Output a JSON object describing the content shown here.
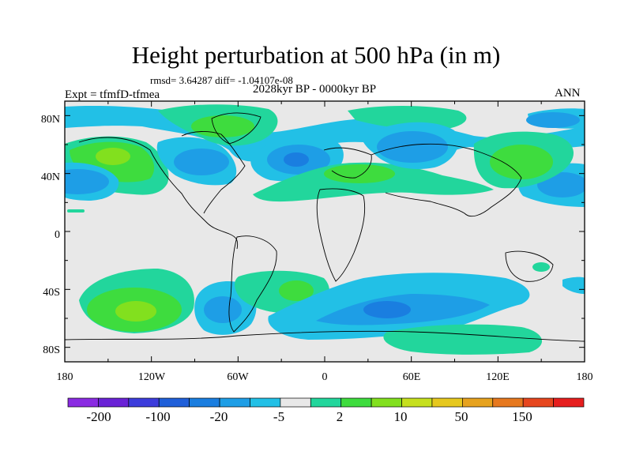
{
  "title": "Height perturbation at 500 hPa (in m)",
  "subtitle": "rmsd= 3.64287 diff= -1.04107e-08",
  "period": "2028kyr BP - 0000kyr BP",
  "experiment": "Expt = tfmfD-tfmea",
  "season": "ANN",
  "axes": {
    "lat_labels": [
      "80N",
      "40N",
      "0",
      "40S",
      "80S"
    ],
    "lon_labels": [
      "180",
      "120W",
      "60W",
      "0",
      "60E",
      "120E",
      "180"
    ],
    "lat_range": [
      -90,
      90
    ],
    "lon_range": [
      -180,
      180
    ]
  },
  "colorbar": {
    "colors": [
      "#8a2be2",
      "#6a22d6",
      "#3c3cdc",
      "#1f5fd9",
      "#1a7ee0",
      "#1e9ee6",
      "#22c0e6",
      "#e8e8e8",
      "#22d69c",
      "#3edc3e",
      "#82e01e",
      "#c6e01e",
      "#e6c81e",
      "#e6a21e",
      "#e6781e",
      "#e6461e",
      "#e61e1e"
    ],
    "labels": [
      "-200",
      "-100",
      "-20",
      "-5",
      "2",
      "10",
      "50",
      "150"
    ]
  },
  "chart_data": {
    "type": "heatmap",
    "title": "Height perturbation at 500 hPa (in m)",
    "projection": "cylindrical equidistant",
    "xlabel": "",
    "ylabel": "",
    "xlim": [
      -180,
      180
    ],
    "ylim": [
      -90,
      90
    ],
    "contour_levels": [
      -200,
      -150,
      -100,
      -50,
      -20,
      -10,
      -5,
      -2,
      2,
      5,
      10,
      20,
      50,
      100,
      150,
      200
    ],
    "anomaly_regions": [
      {
        "sign": "positive",
        "lon": -145,
        "lat": 53,
        "peak_level": 20
      },
      {
        "sign": "positive",
        "lon": -130,
        "lat": -55,
        "peak_level": 20
      },
      {
        "sign": "positive",
        "lon": 128,
        "lat": 50,
        "peak_level": 10
      },
      {
        "sign": "positive",
        "lon": -65,
        "lat": 76,
        "peak_level": 10
      },
      {
        "sign": "positive",
        "lon": 40,
        "lat": 35,
        "peak_level": 10
      },
      {
        "sign": "positive",
        "lon": -20,
        "lat": -38,
        "peak_level": 10
      },
      {
        "sign": "positive",
        "lon": 55,
        "lat": -78,
        "peak_level": 5
      },
      {
        "sign": "negative",
        "lon": -170,
        "lat": 35,
        "peak_level": -5
      },
      {
        "sign": "negative",
        "lon": 170,
        "lat": 33,
        "peak_level": -5
      },
      {
        "sign": "negative",
        "lon": -100,
        "lat": 50,
        "peak_level": -5
      },
      {
        "sign": "negative",
        "lon": -25,
        "lat": 52,
        "peak_level": -5
      },
      {
        "sign": "negative",
        "lon": 60,
        "lat": 60,
        "peak_level": -5
      },
      {
        "sign": "negative",
        "lon": 45,
        "lat": -52,
        "peak_level": -5
      },
      {
        "sign": "negative",
        "lon": -65,
        "lat": -55,
        "peak_level": -2
      }
    ]
  }
}
